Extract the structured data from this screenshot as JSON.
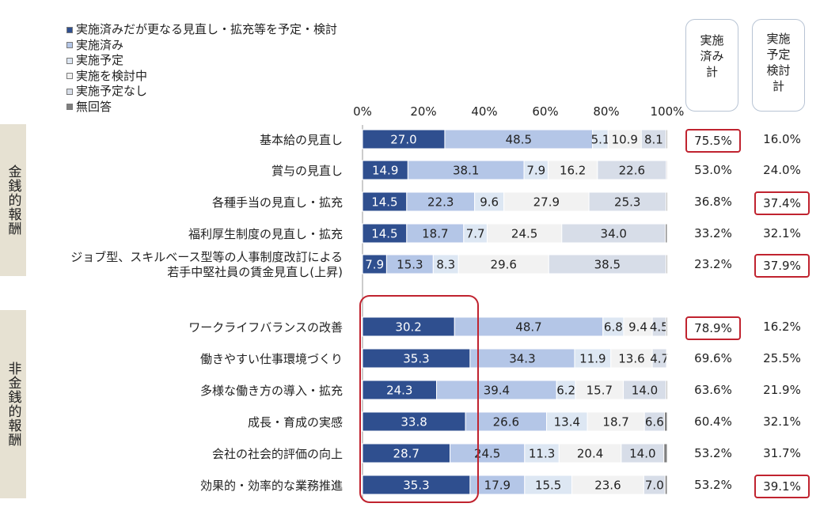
{
  "legend": [
    {
      "label": "実施済みだが更なる見直し・拡充等を予定・検討",
      "color": "#2f4f8f"
    },
    {
      "label": "実施済み",
      "color": "#b4c6e7"
    },
    {
      "label": "実施予定",
      "color": "#dde7f3"
    },
    {
      "label": "実施を検討中",
      "color": "#f2f2f2"
    },
    {
      "label": "実施予定なし",
      "color": "#d7dde8"
    },
    {
      "label": "無回答",
      "color": "#7f7f7f"
    }
  ],
  "groups": [
    {
      "label": "金銭的報酬"
    },
    {
      "label": "非金銭的報酬"
    }
  ],
  "headers": {
    "implemented": [
      "実施",
      "済み",
      "計"
    ],
    "planned": [
      "実施",
      "予定",
      "検討",
      "計"
    ]
  },
  "chart_data": {
    "type": "bar",
    "orientation": "horizontal",
    "stacked": true,
    "xlim": [
      0,
      100
    ],
    "x_ticks": [
      "0%",
      "20%",
      "40%",
      "60%",
      "80%",
      "100%"
    ],
    "series_names": [
      "実施済みだが更なる見直し・拡充等を予定・検討",
      "実施済み",
      "実施予定",
      "実施を検討中",
      "実施予定なし",
      "無回答"
    ],
    "rows": [
      {
        "category": "基本給の見直し",
        "group": 0,
        "values": [
          27.0,
          48.5,
          5.1,
          10.9,
          8.1,
          0.4
        ],
        "labels": [
          "27.0",
          "48.5",
          "5.1",
          "10.9",
          "8.1",
          ""
        ],
        "implemented_total": "75.5%",
        "planned_total": "16.0%",
        "implemented_boxed": true,
        "planned_boxed": false
      },
      {
        "category": "賞与の見直し",
        "group": 0,
        "values": [
          14.9,
          38.1,
          7.9,
          16.2,
          22.6,
          0.3
        ],
        "labels": [
          "14.9",
          "38.1",
          "7.9",
          "16.2",
          "22.6",
          ""
        ],
        "implemented_total": "53.0%",
        "planned_total": "24.0%",
        "implemented_boxed": false,
        "planned_boxed": false
      },
      {
        "category": "各種手当の見直し・拡充",
        "group": 0,
        "values": [
          14.5,
          22.3,
          9.6,
          27.9,
          25.3,
          0.4
        ],
        "labels": [
          "14.5",
          "22.3",
          "9.6",
          "27.9",
          "25.3",
          ""
        ],
        "implemented_total": "36.8%",
        "planned_total": "37.4%",
        "implemented_boxed": false,
        "planned_boxed": true
      },
      {
        "category": "福利厚生制度の見直し・拡充",
        "group": 0,
        "values": [
          14.5,
          18.7,
          7.7,
          24.5,
          34.0,
          0.6
        ],
        "labels": [
          "14.5",
          "18.7",
          "7.7",
          "24.5",
          "34.0",
          ""
        ],
        "implemented_total": "33.2%",
        "planned_total": "32.1%",
        "implemented_boxed": false,
        "planned_boxed": false
      },
      {
        "category": [
          "ジョブ型、スキルベース型等の人事制度改訂による",
          "若手中堅社員の賃金見直し(上昇)"
        ],
        "group": 0,
        "values": [
          7.9,
          15.3,
          8.3,
          29.6,
          38.5,
          0.4
        ],
        "labels": [
          "7.9",
          "15.3",
          "8.3",
          "29.6",
          "38.5",
          ""
        ],
        "implemented_total": "23.2%",
        "planned_total": "37.9%",
        "implemented_boxed": false,
        "planned_boxed": true
      },
      {
        "category": "ワークライフバランスの改善",
        "group": 1,
        "values": [
          30.2,
          48.7,
          6.8,
          9.4,
          4.5,
          0.4
        ],
        "labels": [
          "30.2",
          "48.7",
          "6.8",
          "9.4",
          "4.5",
          ""
        ],
        "implemented_total": "78.9%",
        "planned_total": "16.2%",
        "implemented_boxed": true,
        "planned_boxed": false
      },
      {
        "category": "働きやすい仕事環境づくり",
        "group": 1,
        "values": [
          35.3,
          34.3,
          11.9,
          13.6,
          4.7,
          0.2
        ],
        "labels": [
          "35.3",
          "34.3",
          "11.9",
          "13.6",
          "4.7",
          ""
        ],
        "implemented_total": "69.6%",
        "planned_total": "25.5%",
        "implemented_boxed": false,
        "planned_boxed": false
      },
      {
        "category": "多様な働き方の導入・拡充",
        "group": 1,
        "values": [
          24.3,
          39.4,
          6.2,
          15.7,
          14.0,
          0.4
        ],
        "labels": [
          "24.3",
          "39.4",
          "6.2",
          "15.7",
          "14.0",
          ""
        ],
        "implemented_total": "63.6%",
        "planned_total": "21.9%",
        "implemented_boxed": false,
        "planned_boxed": false
      },
      {
        "category": "成長・育成の実感",
        "group": 1,
        "values": [
          33.8,
          26.6,
          13.4,
          18.7,
          6.6,
          0.9
        ],
        "labels": [
          "33.8",
          "26.6",
          "13.4",
          "18.7",
          "6.6",
          ""
        ],
        "implemented_total": "60.4%",
        "planned_total": "32.1%",
        "implemented_boxed": false,
        "planned_boxed": false
      },
      {
        "category": "会社の社会的評価の向上",
        "group": 1,
        "values": [
          28.7,
          24.5,
          11.3,
          20.4,
          14.0,
          1.1
        ],
        "labels": [
          "28.7",
          "24.5",
          "11.3",
          "20.4",
          "14.0",
          ""
        ],
        "implemented_total": "53.2%",
        "planned_total": "31.7%",
        "implemented_boxed": false,
        "planned_boxed": false
      },
      {
        "category": "効果的・効率的な業務推進",
        "group": 1,
        "values": [
          35.3,
          17.9,
          15.5,
          23.6,
          7.0,
          0.7
        ],
        "labels": [
          "35.3",
          "17.9",
          "15.5",
          "23.6",
          "7.0",
          ""
        ],
        "implemented_total": "53.2%",
        "planned_total": "39.1%",
        "implemented_boxed": false,
        "planned_boxed": true
      }
    ]
  }
}
